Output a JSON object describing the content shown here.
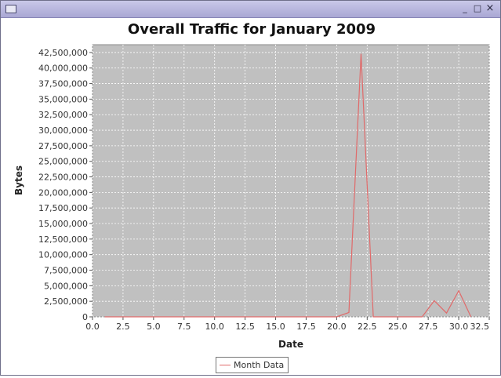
{
  "window": {
    "title": "",
    "controls": {
      "minimize": "_",
      "maximize": "□",
      "close": "×"
    }
  },
  "chart_data": {
    "type": "line",
    "title": "Overall Traffic for January 2009",
    "xlabel": "Date",
    "ylabel": "Bytes",
    "xlim": [
      0,
      32.5
    ],
    "ylim": [
      0,
      43750000
    ],
    "x_ticks": [
      0,
      2.5,
      5,
      7.5,
      10,
      12.5,
      15,
      17.5,
      20,
      22.5,
      25,
      27.5,
      30,
      32.5
    ],
    "x_tick_labels": [
      "0.0",
      "2.5",
      "5.0",
      "7.5",
      "10.0",
      "12.5",
      "15.0",
      "17.5",
      "20.0",
      "22.5",
      "25.0",
      "27.5",
      "30.0",
      "32.5"
    ],
    "y_ticks": [
      0,
      2500000,
      5000000,
      7500000,
      10000000,
      12500000,
      15000000,
      17500000,
      20000000,
      22500000,
      25000000,
      27500000,
      30000000,
      32500000,
      35000000,
      37500000,
      40000000,
      42500000
    ],
    "y_tick_labels": [
      "0",
      "2,500,000",
      "5,000,000",
      "7,500,000",
      "10,000,000",
      "12,500,000",
      "15,000,000",
      "17,500,000",
      "20,000,000",
      "22,500,000",
      "25,000,000",
      "27,500,000",
      "30,000,000",
      "32,500,000",
      "35,000,000",
      "37,500,000",
      "40,000,000",
      "42,500,000"
    ],
    "grid": true,
    "legend_position": "bottom",
    "colors": {
      "series": "#e06a6a",
      "plot_background": "#c0c0c0",
      "grid": "#ffffff"
    },
    "series": [
      {
        "name": "Month Data",
        "x": [
          1,
          2,
          3,
          4,
          5,
          6,
          7,
          8,
          9,
          10,
          11,
          12,
          13,
          14,
          15,
          16,
          17,
          18,
          19,
          20,
          21,
          22,
          23,
          24,
          25,
          26,
          27,
          28,
          29,
          30,
          31
        ],
        "y": [
          0,
          0,
          0,
          0,
          0,
          0,
          0,
          0,
          0,
          0,
          0,
          0,
          0,
          0,
          0,
          0,
          0,
          0,
          0,
          0,
          700000,
          42300000,
          0,
          0,
          0,
          0,
          0,
          2600000,
          600000,
          4200000,
          0
        ]
      }
    ]
  }
}
